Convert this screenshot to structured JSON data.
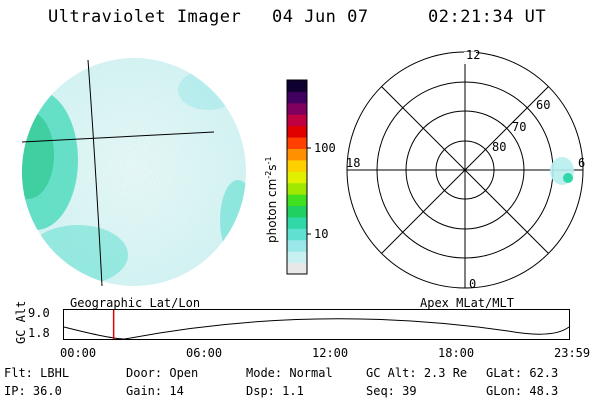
{
  "header": {
    "instrument": "Ultraviolet Imager",
    "date": "04 Jun 07",
    "time": "02:21:34 UT"
  },
  "colorbar": {
    "label": "photon cm",
    "label_sup1": "-2",
    "label_mid": "s",
    "label_sup2": "-1",
    "ticks": [
      "100",
      "10"
    ],
    "colors": [
      "#e8e8e8",
      "#c8f0f0",
      "#9ae8e8",
      "#60e0d0",
      "#30d8a8",
      "#20d060",
      "#40e020",
      "#a0e800",
      "#e0f000",
      "#ffd000",
      "#ff9000",
      "#ff4000",
      "#e00000",
      "#c00040",
      "#800060",
      "#400060",
      "#100030"
    ]
  },
  "polar": {
    "mlt_labels": {
      "top": "12",
      "left": "18",
      "right": "6",
      "bottom": "0"
    },
    "lat_labels": [
      "60",
      "70",
      "80"
    ]
  },
  "timeline": {
    "left_label": "Geographic Lat/Lon",
    "right_label": "Apex MLat/MLT",
    "axis_label": "GC Alt",
    "y_values": [
      "9.0",
      "1.8"
    ],
    "x_ticks": [
      "00:00",
      "06:00",
      "12:00",
      "18:00",
      "23:59"
    ],
    "current_time_fraction": 0.0983,
    "marker_color": "#e00000"
  },
  "info": {
    "row1": [
      {
        "key": "Flt:",
        "value": "LBHL"
      },
      {
        "key": "Door:",
        "value": "Open"
      },
      {
        "key": "Mode:",
        "value": "Normal"
      },
      {
        "key": "GC Alt:",
        "value": "2.3 Re"
      },
      {
        "key": "GLat:",
        "value": "62.3"
      }
    ],
    "row2": [
      {
        "key": "IP:",
        "value": "36.0"
      },
      {
        "key": "Gain:",
        "value": "14"
      },
      {
        "key": "Dsp:",
        "value": "1.1"
      },
      {
        "key": "Seq:",
        "value": "39"
      },
      {
        "key": "GLon:",
        "value": "48.3"
      }
    ]
  }
}
